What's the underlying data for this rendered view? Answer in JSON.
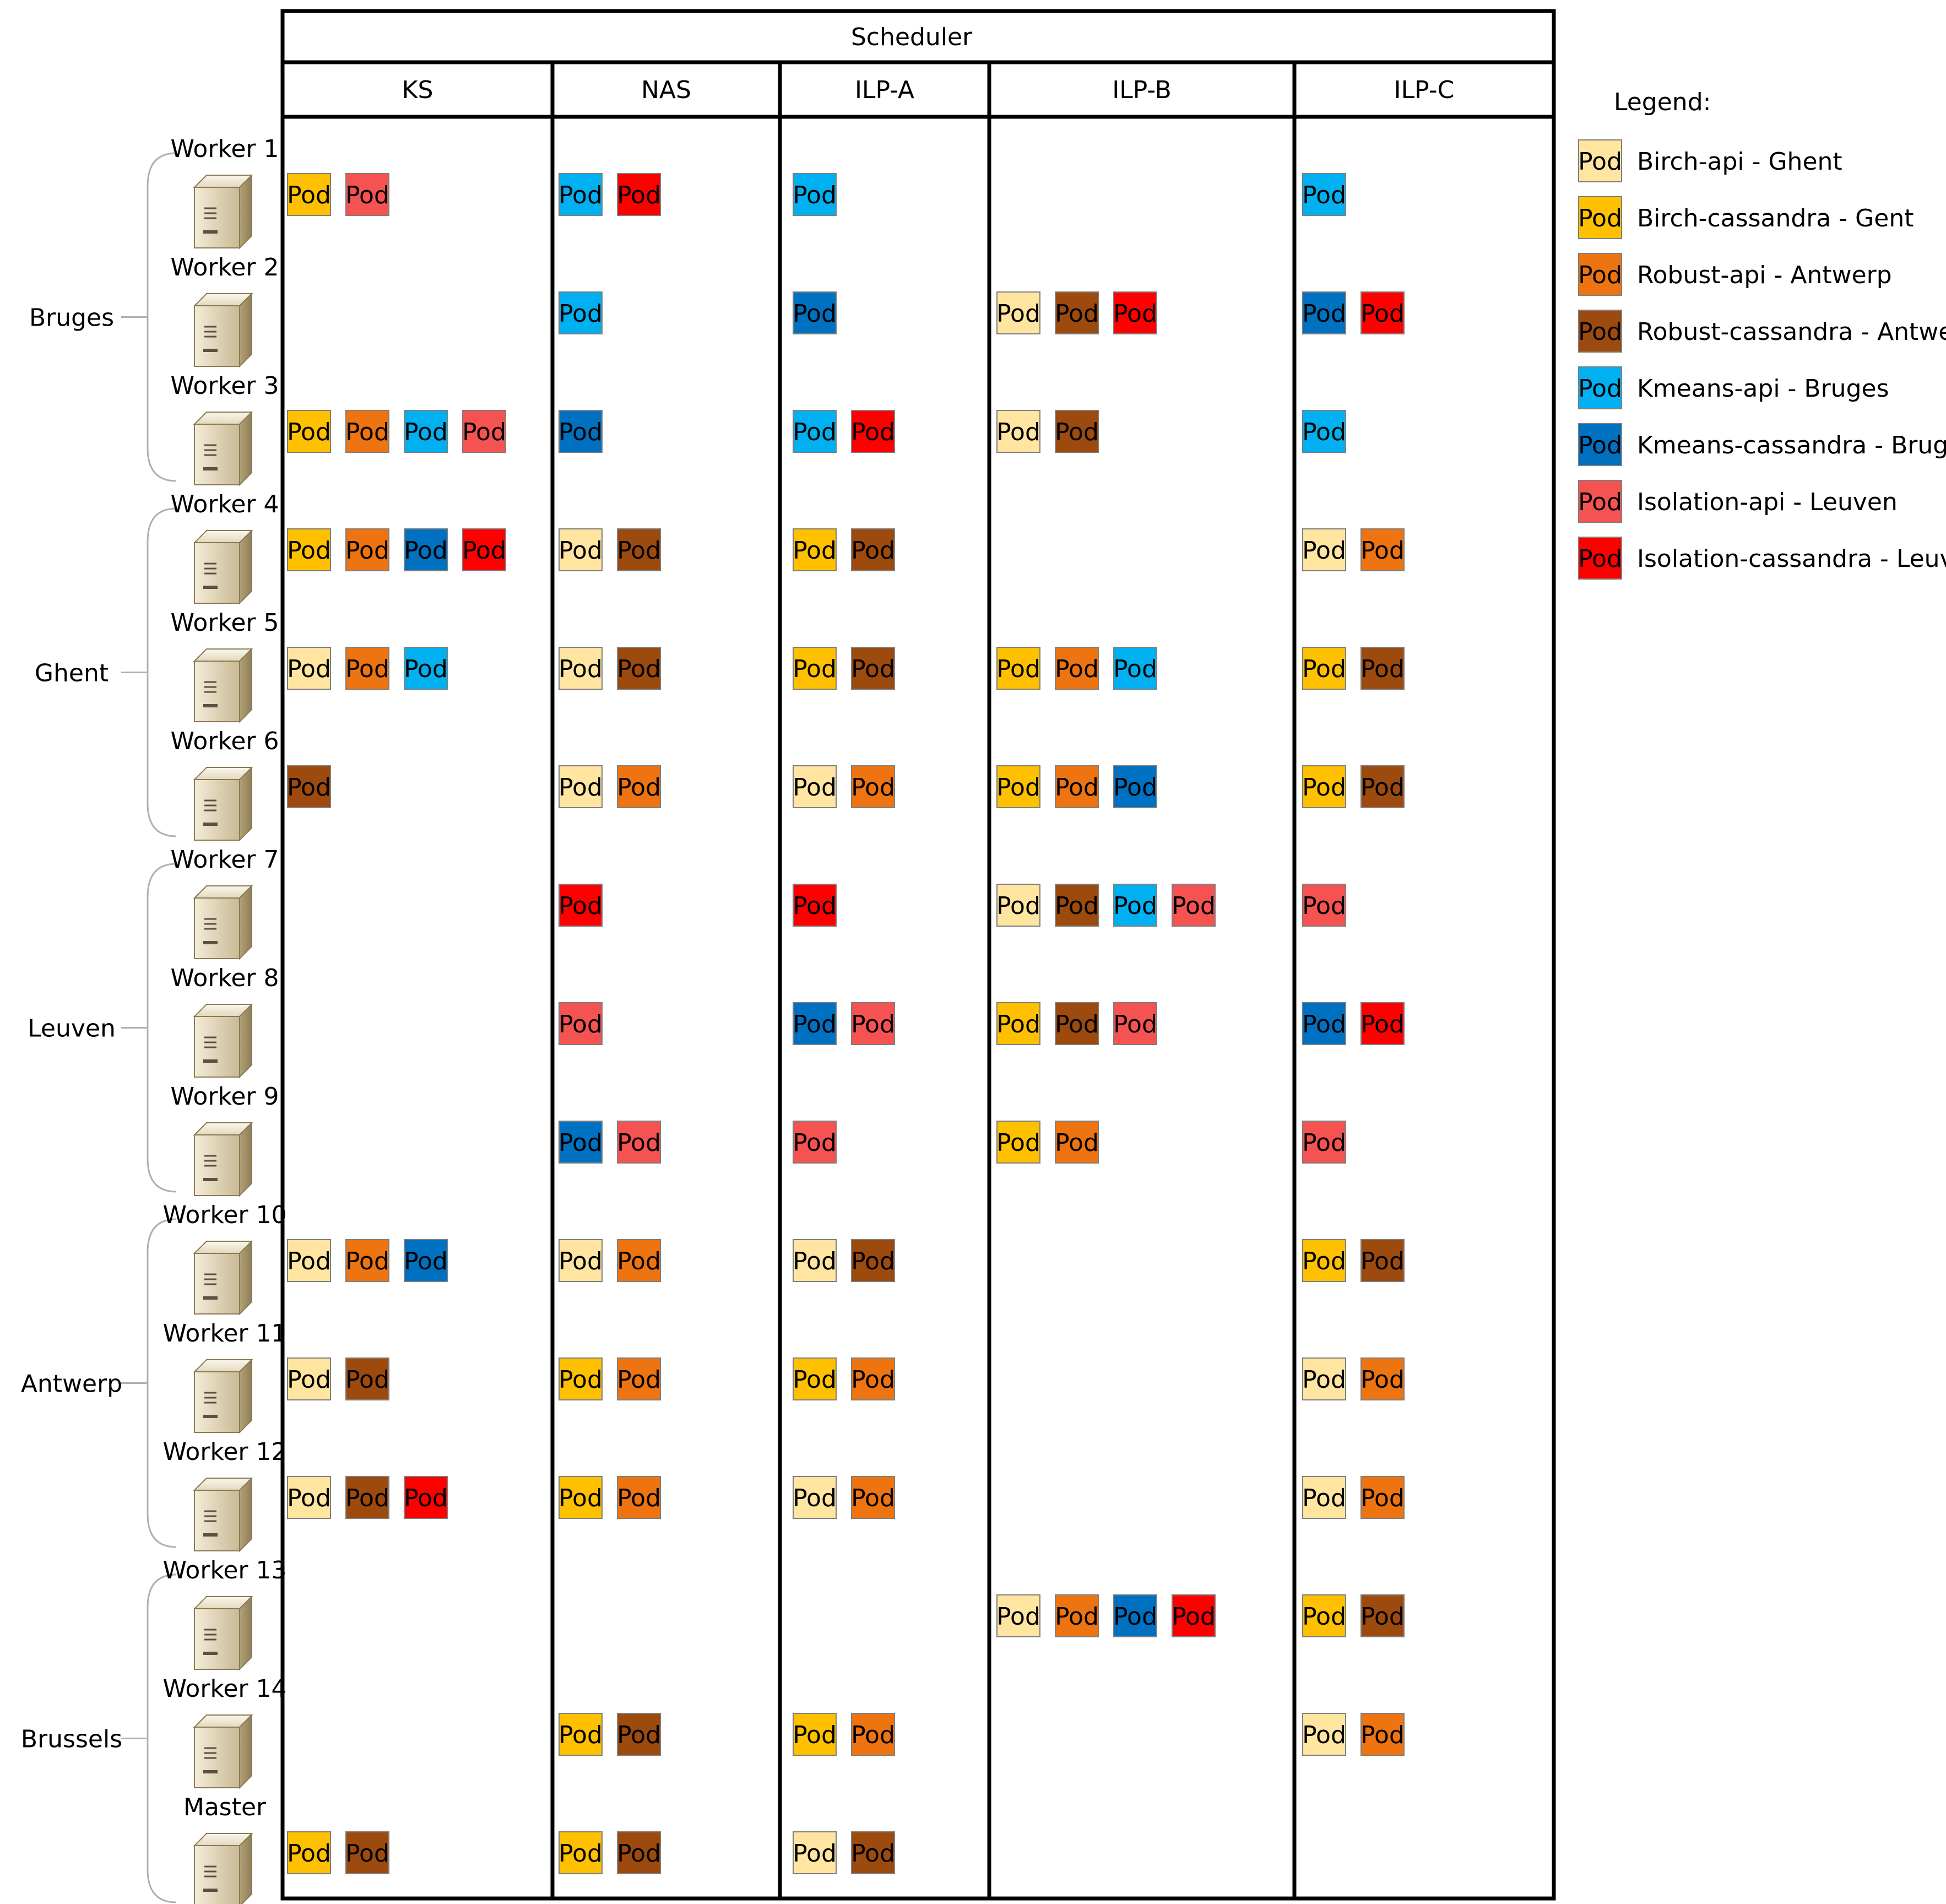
{
  "scheduler_title": "Scheduler",
  "columns": [
    "KS",
    "NAS",
    "ILP-A",
    "ILP-B",
    "ILP-C"
  ],
  "pod_label": "Pod",
  "legend": {
    "title": "Legend:",
    "items": [
      {
        "key": "BA",
        "label": "Birch-api - Ghent",
        "color": "#FFE5A0"
      },
      {
        "key": "BC",
        "label": "Birch-cassandra - Gent",
        "color": "#FFC000"
      },
      {
        "key": "RA",
        "label": "Robust-api - Antwerp",
        "color": "#ED7410"
      },
      {
        "key": "RC",
        "label": "Robust-cassandra - Antwerp",
        "color": "#9C4A0E"
      },
      {
        "key": "KA",
        "label": "Kmeans-api - Bruges",
        "color": "#00B0F0"
      },
      {
        "key": "KC",
        "label": "Kmeans-cassandra - Bruges",
        "color": "#0070C0"
      },
      {
        "key": "IA",
        "label": "Isolation-api - Leuven",
        "color": "#F55252"
      },
      {
        "key": "IC",
        "label": "Isolation-cassandra - Leuven",
        "color": "#FF0000"
      }
    ]
  },
  "regions": [
    {
      "label": "Bruges",
      "workers": [
        0,
        2
      ]
    },
    {
      "label": "Ghent",
      "workers": [
        3,
        5
      ]
    },
    {
      "label": "Leuven",
      "workers": [
        6,
        8
      ]
    },
    {
      "label": "Antwerp",
      "workers": [
        9,
        11
      ]
    },
    {
      "label": "Brussels",
      "workers": [
        12,
        14
      ]
    }
  ],
  "workers": [
    {
      "label": "Worker 1",
      "pods": [
        [
          "BC",
          "IA"
        ],
        [
          "KA",
          "IC"
        ],
        [
          "KA"
        ],
        [],
        [
          "KA"
        ]
      ]
    },
    {
      "label": "Worker 2",
      "pods": [
        [],
        [
          "KA"
        ],
        [
          "KC"
        ],
        [
          "BA",
          "RC",
          "IC"
        ],
        [
          "KC",
          "IC"
        ]
      ]
    },
    {
      "label": "Worker 3",
      "pods": [
        [
          "BC",
          "RA",
          "KA",
          "IA"
        ],
        [
          "KC"
        ],
        [
          "KA",
          "IC"
        ],
        [
          "BA",
          "RC"
        ],
        [
          "KA"
        ]
      ]
    },
    {
      "label": "Worker 4",
      "pods": [
        [
          "BC",
          "RA",
          "KC",
          "IC"
        ],
        [
          "BA",
          "RC"
        ],
        [
          "BC",
          "RC"
        ],
        [],
        [
          "BA",
          "RA"
        ]
      ]
    },
    {
      "label": "Worker 5",
      "pods": [
        [
          "BA",
          "RA",
          "KA"
        ],
        [
          "BA",
          "RC"
        ],
        [
          "BC",
          "RC"
        ],
        [
          "BC",
          "RA",
          "KA"
        ],
        [
          "BC",
          "RC"
        ]
      ]
    },
    {
      "label": "Worker 6",
      "pods": [
        [
          "RC"
        ],
        [
          "BA",
          "RA"
        ],
        [
          "BA",
          "RA"
        ],
        [
          "BC",
          "RA",
          "KC"
        ],
        [
          "BC",
          "RC"
        ]
      ]
    },
    {
      "label": "Worker 7",
      "pods": [
        [],
        [
          "IC"
        ],
        [
          "IC"
        ],
        [
          "BA",
          "RC",
          "KA",
          "IA"
        ],
        [
          "IA"
        ]
      ]
    },
    {
      "label": "Worker 8",
      "pods": [
        [],
        [
          "IA"
        ],
        [
          "KC",
          "IA"
        ],
        [
          "BC",
          "RC",
          "IA"
        ],
        [
          "KC",
          "IC"
        ]
      ]
    },
    {
      "label": "Worker 9",
      "pods": [
        [],
        [
          "KC",
          "IA"
        ],
        [
          "IA"
        ],
        [
          "BC",
          "RA"
        ],
        [
          "IA"
        ]
      ]
    },
    {
      "label": "Worker 10",
      "pods": [
        [
          "BA",
          "RA",
          "KC"
        ],
        [
          "BA",
          "RA"
        ],
        [
          "BA",
          "RC"
        ],
        [],
        [
          "BC",
          "RC"
        ]
      ]
    },
    {
      "label": "Worker 11",
      "pods": [
        [
          "BA",
          "RC"
        ],
        [
          "BC",
          "RA"
        ],
        [
          "BC",
          "RA"
        ],
        [],
        [
          "BA",
          "RA"
        ]
      ]
    },
    {
      "label": "Worker 12",
      "pods": [
        [
          "BA",
          "RC",
          "IC"
        ],
        [
          "BC",
          "RA"
        ],
        [
          "BA",
          "RA"
        ],
        [],
        [
          "BA",
          "RA"
        ]
      ]
    },
    {
      "label": "Worker 13",
      "pods": [
        [],
        [],
        [],
        [
          "BA",
          "RA",
          "KC",
          "IC"
        ],
        [
          "BC",
          "RC"
        ]
      ]
    },
    {
      "label": "Worker 14",
      "pods": [
        [],
        [
          "BC",
          "RC"
        ],
        [
          "BC",
          "RA"
        ],
        [],
        [
          "BA",
          "RA"
        ]
      ]
    },
    {
      "label": "Master",
      "pods": [
        [
          "BC",
          "RC"
        ],
        [
          "BC",
          "RC"
        ],
        [
          "BA",
          "RC"
        ],
        [],
        []
      ]
    }
  ]
}
